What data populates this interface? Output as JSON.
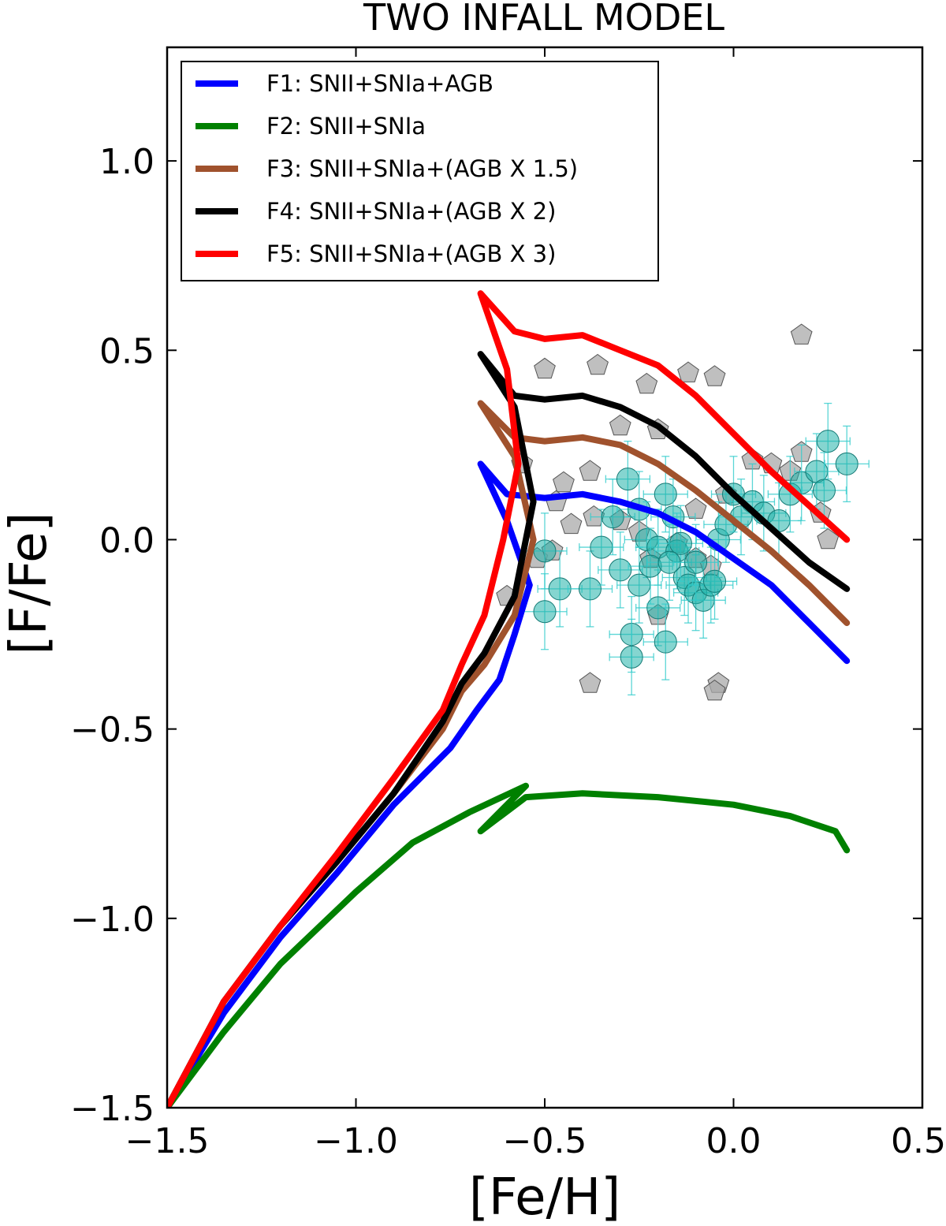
{
  "chart_data": {
    "type": "line",
    "title": "TWO INFALL MODEL",
    "xlabel": "[Fe/H]",
    "ylabel": "[F/Fe]",
    "xlim": [
      -1.5,
      0.5
    ],
    "ylim": [
      -1.5,
      1.3
    ],
    "x_ticks": [
      -1.5,
      -1.0,
      -0.5,
      0.0,
      0.5
    ],
    "x_tick_labels": [
      "−1.5",
      "−1.0",
      "−0.5",
      "0.0",
      "0.5"
    ],
    "y_ticks": [
      -1.5,
      -1.0,
      -0.5,
      0.0,
      0.5,
      1.0
    ],
    "y_tick_labels": [
      "−1.5",
      "−1.0",
      "−0.5",
      "0.0",
      "0.5",
      "1.0"
    ],
    "legend_position": "top-left",
    "series": [
      {
        "name": "F1: SNII+SNIa+AGB",
        "color": "#0000ff",
        "points": [
          [
            -1.5,
            -1.5
          ],
          [
            -1.35,
            -1.25
          ],
          [
            -1.2,
            -1.05
          ],
          [
            -1.05,
            -0.88
          ],
          [
            -0.9,
            -0.7
          ],
          [
            -0.75,
            -0.55
          ],
          [
            -0.68,
            -0.45
          ],
          [
            -0.62,
            -0.37
          ],
          [
            -0.58,
            -0.25
          ],
          [
            -0.54,
            -0.12
          ],
          [
            -0.6,
            0.05
          ],
          [
            -0.67,
            0.2
          ],
          [
            -0.6,
            0.12
          ],
          [
            -0.5,
            0.11
          ],
          [
            -0.4,
            0.12
          ],
          [
            -0.3,
            0.1
          ],
          [
            -0.2,
            0.07
          ],
          [
            -0.1,
            0.02
          ],
          [
            0.0,
            -0.05
          ],
          [
            0.1,
            -0.12
          ],
          [
            0.2,
            -0.22
          ],
          [
            0.3,
            -0.32
          ]
        ]
      },
      {
        "name": "F2: SNII+SNIa",
        "color": "#008000",
        "points": [
          [
            -1.5,
            -1.5
          ],
          [
            -1.35,
            -1.3
          ],
          [
            -1.2,
            -1.12
          ],
          [
            -1.0,
            -0.93
          ],
          [
            -0.85,
            -0.8
          ],
          [
            -0.7,
            -0.72
          ],
          [
            -0.55,
            -0.65
          ],
          [
            -0.67,
            -0.77
          ],
          [
            -0.55,
            -0.68
          ],
          [
            -0.4,
            -0.67
          ],
          [
            -0.2,
            -0.68
          ],
          [
            0.0,
            -0.7
          ],
          [
            0.15,
            -0.73
          ],
          [
            0.27,
            -0.77
          ],
          [
            0.3,
            -0.82
          ]
        ]
      },
      {
        "name": "F3: SNII+SNIa+(AGB X 1.5)",
        "color": "#a0522d",
        "points": [
          [
            -1.5,
            -1.5
          ],
          [
            -1.35,
            -1.22
          ],
          [
            -1.2,
            -1.02
          ],
          [
            -1.05,
            -0.85
          ],
          [
            -0.9,
            -0.67
          ],
          [
            -0.77,
            -0.5
          ],
          [
            -0.72,
            -0.4
          ],
          [
            -0.66,
            -0.33
          ],
          [
            -0.58,
            -0.2
          ],
          [
            -0.53,
            0.0
          ],
          [
            -0.58,
            0.22
          ],
          [
            -0.67,
            0.36
          ],
          [
            -0.58,
            0.27
          ],
          [
            -0.5,
            0.26
          ],
          [
            -0.4,
            0.27
          ],
          [
            -0.3,
            0.25
          ],
          [
            -0.2,
            0.2
          ],
          [
            -0.1,
            0.13
          ],
          [
            0.0,
            0.05
          ],
          [
            0.1,
            -0.03
          ],
          [
            0.2,
            -0.12
          ],
          [
            0.3,
            -0.22
          ]
        ]
      },
      {
        "name": "F4: SNII+SNIa+(AGB X 2)",
        "color": "#000000",
        "points": [
          [
            -1.5,
            -1.5
          ],
          [
            -1.35,
            -1.22
          ],
          [
            -1.2,
            -1.02
          ],
          [
            -1.05,
            -0.85
          ],
          [
            -0.9,
            -0.67
          ],
          [
            -0.77,
            -0.48
          ],
          [
            -0.72,
            -0.38
          ],
          [
            -0.66,
            -0.3
          ],
          [
            -0.58,
            -0.15
          ],
          [
            -0.53,
            0.1
          ],
          [
            -0.58,
            0.35
          ],
          [
            -0.67,
            0.49
          ],
          [
            -0.58,
            0.38
          ],
          [
            -0.5,
            0.37
          ],
          [
            -0.4,
            0.38
          ],
          [
            -0.3,
            0.35
          ],
          [
            -0.2,
            0.3
          ],
          [
            -0.1,
            0.22
          ],
          [
            0.0,
            0.12
          ],
          [
            0.1,
            0.03
          ],
          [
            0.2,
            -0.06
          ],
          [
            0.3,
            -0.13
          ]
        ]
      },
      {
        "name": "F5: SNII+SNIa+(AGB X 3)",
        "color": "#ff0000",
        "points": [
          [
            -1.5,
            -1.5
          ],
          [
            -1.35,
            -1.22
          ],
          [
            -1.2,
            -1.02
          ],
          [
            -1.05,
            -0.83
          ],
          [
            -0.9,
            -0.63
          ],
          [
            -0.77,
            -0.45
          ],
          [
            -0.72,
            -0.33
          ],
          [
            -0.66,
            -0.2
          ],
          [
            -0.61,
            0.0
          ],
          [
            -0.57,
            0.2
          ],
          [
            -0.6,
            0.45
          ],
          [
            -0.67,
            0.65
          ],
          [
            -0.58,
            0.55
          ],
          [
            -0.5,
            0.53
          ],
          [
            -0.4,
            0.54
          ],
          [
            -0.3,
            0.5
          ],
          [
            -0.2,
            0.46
          ],
          [
            -0.1,
            0.38
          ],
          [
            0.0,
            0.28
          ],
          [
            0.1,
            0.18
          ],
          [
            0.2,
            0.09
          ],
          [
            0.3,
            0.0
          ]
        ]
      }
    ],
    "scatter_gray_pentagons": [
      [
        -0.5,
        0.45
      ],
      [
        -0.36,
        0.46
      ],
      [
        -0.23,
        0.41
      ],
      [
        -0.12,
        0.44
      ],
      [
        -0.05,
        0.43
      ],
      [
        0.18,
        0.54
      ],
      [
        -0.3,
        0.3
      ],
      [
        -0.2,
        0.29
      ],
      [
        -0.38,
        0.18
      ],
      [
        -0.45,
        0.15
      ],
      [
        -0.47,
        0.1
      ],
      [
        -0.43,
        0.04
      ],
      [
        -0.37,
        0.06
      ],
      [
        -0.3,
        0.05
      ],
      [
        -0.25,
        0.02
      ],
      [
        -0.22,
        -0.05
      ],
      [
        -0.15,
        -0.01
      ],
      [
        -0.1,
        -0.05
      ],
      [
        -0.06,
        -0.07
      ],
      [
        -0.1,
        0.08
      ],
      [
        -0.02,
        0.12
      ],
      [
        0.05,
        0.21
      ],
      [
        0.1,
        0.2
      ],
      [
        0.15,
        0.18
      ],
      [
        0.18,
        0.23
      ],
      [
        0.23,
        0.07
      ],
      [
        0.25,
        0.0
      ],
      [
        -0.52,
        -0.05
      ],
      [
        -0.48,
        -0.03
      ],
      [
        -0.56,
        0.2
      ],
      [
        -0.6,
        -0.15
      ],
      [
        -0.38,
        -0.38
      ],
      [
        -0.04,
        -0.38
      ],
      [
        -0.05,
        -0.4
      ],
      [
        -0.2,
        -0.2
      ]
    ],
    "scatter_cyan_circles": [
      [
        -0.5,
        -0.03
      ],
      [
        -0.46,
        -0.13
      ],
      [
        -0.5,
        -0.19
      ],
      [
        -0.38,
        -0.13
      ],
      [
        -0.35,
        -0.02
      ],
      [
        -0.32,
        0.06
      ],
      [
        -0.28,
        0.16
      ],
      [
        -0.25,
        0.08
      ],
      [
        -0.23,
        0.0
      ],
      [
        -0.2,
        -0.02
      ],
      [
        -0.18,
        0.12
      ],
      [
        -0.16,
        0.06
      ],
      [
        -0.15,
        -0.03
      ],
      [
        -0.13,
        -0.1
      ],
      [
        -0.12,
        -0.12
      ],
      [
        -0.1,
        -0.14
      ],
      [
        -0.08,
        -0.16
      ],
      [
        -0.06,
        -0.12
      ],
      [
        -0.04,
        0.0
      ],
      [
        -0.02,
        0.04
      ],
      [
        0.0,
        0.12
      ],
      [
        0.05,
        0.1
      ],
      [
        0.08,
        0.07
      ],
      [
        0.12,
        0.05
      ],
      [
        0.15,
        0.12
      ],
      [
        0.18,
        0.15
      ],
      [
        0.22,
        0.18
      ],
      [
        0.25,
        0.26
      ],
      [
        0.3,
        0.2
      ],
      [
        0.24,
        0.13
      ],
      [
        -0.25,
        -0.12
      ],
      [
        -0.27,
        -0.25
      ],
      [
        -0.27,
        -0.31
      ],
      [
        -0.2,
        -0.18
      ],
      [
        -0.18,
        -0.27
      ],
      [
        -0.3,
        -0.08
      ],
      [
        -0.22,
        -0.07
      ],
      [
        -0.14,
        -0.01
      ],
      [
        -0.17,
        -0.06
      ],
      [
        -0.1,
        -0.06
      ],
      [
        -0.05,
        -0.11
      ],
      [
        0.02,
        0.06
      ]
    ]
  }
}
